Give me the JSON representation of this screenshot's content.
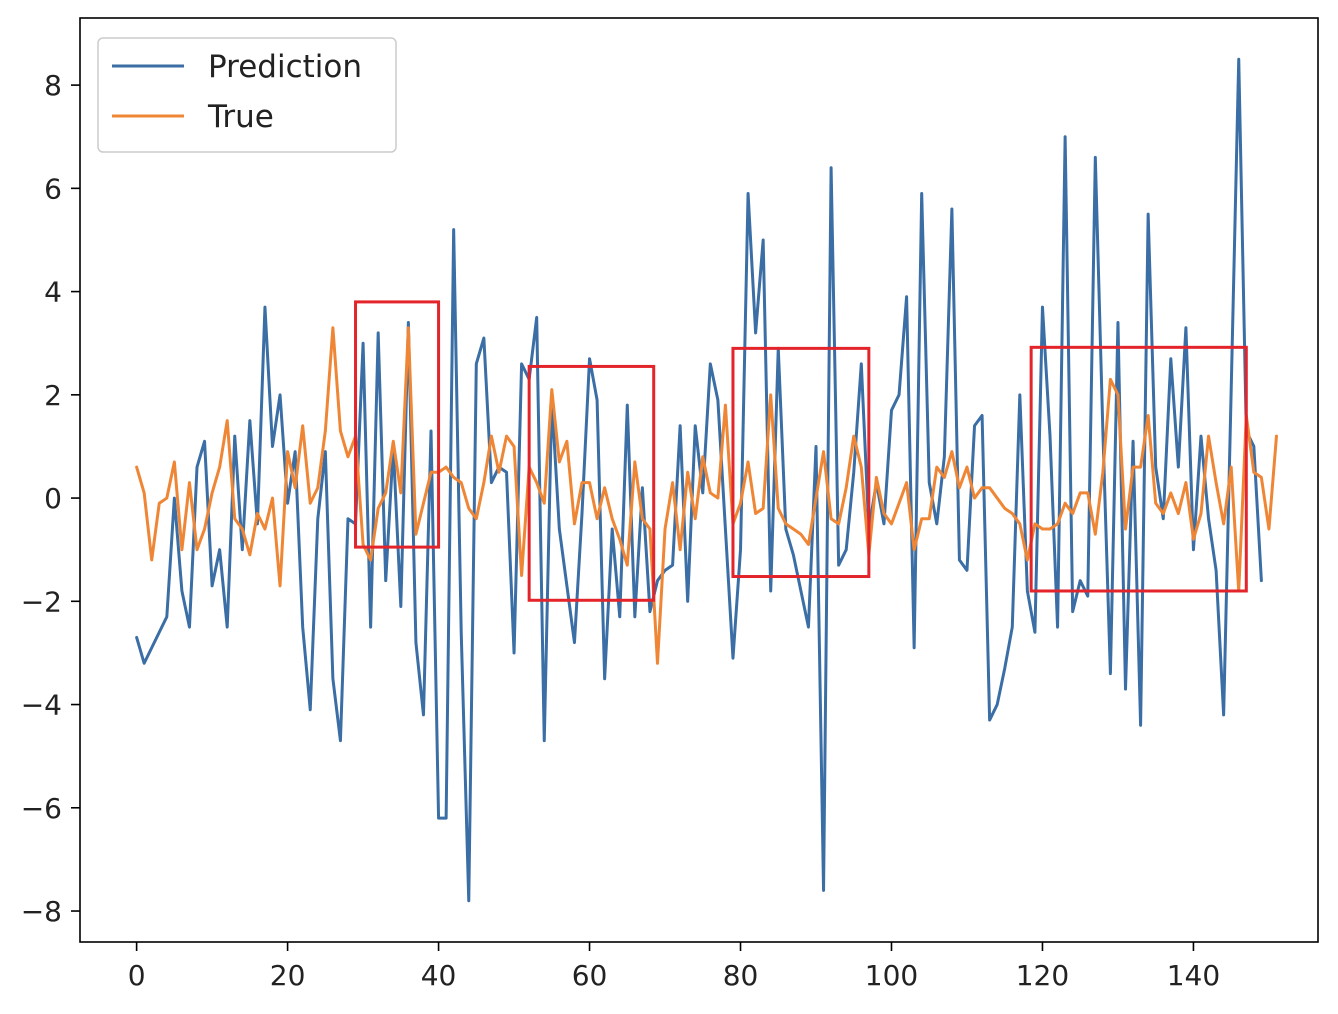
{
  "chart_data": {
    "type": "line",
    "title": "",
    "xlabel": "",
    "ylabel": "",
    "xlim": [
      -7.5,
      156.5
    ],
    "ylim": [
      -8.6,
      9.3
    ],
    "grid": false,
    "legend": {
      "position": "top-left"
    },
    "xticks": [
      0,
      20,
      40,
      60,
      80,
      100,
      120,
      140
    ],
    "yticks": [
      -8,
      -6,
      -4,
      -2,
      0,
      2,
      4,
      6,
      8
    ],
    "series": [
      {
        "name": "Prediction",
        "color": "#3a6ea5",
        "values": [
          -2.7,
          -3.2,
          -2.9,
          -2.6,
          -2.3,
          0.0,
          -1.8,
          -2.5,
          0.6,
          1.1,
          -1.7,
          -1.0,
          -2.5,
          1.2,
          -1.0,
          1.5,
          -0.5,
          3.7,
          1.0,
          2.0,
          -0.1,
          0.9,
          -2.5,
          -4.1,
          -0.4,
          0.9,
          -3.5,
          -4.7,
          -0.4,
          -0.5,
          3.0,
          -2.5,
          3.2,
          -1.6,
          1.0,
          -2.1,
          3.4,
          -2.8,
          -4.2,
          1.3,
          -6.2,
          -6.2,
          5.2,
          -2.6,
          -7.8,
          2.6,
          3.1,
          0.3,
          0.6,
          0.5,
          -3.0,
          2.6,
          2.3,
          3.5,
          -4.7,
          1.9,
          -0.6,
          -1.7,
          -2.8,
          -0.3,
          2.7,
          1.9,
          -3.5,
          -0.6,
          -2.3,
          1.8,
          -2.3,
          0.2,
          -2.2,
          -1.6,
          -1.4,
          -1.3,
          1.4,
          -2.0,
          1.4,
          0.1,
          2.6,
          1.9,
          -0.6,
          -3.1,
          -1.0,
          5.9,
          3.2,
          5.0,
          -1.8,
          2.9,
          -0.6,
          -1.1,
          -1.8,
          -2.5,
          1.0,
          -7.6,
          6.4,
          -1.3,
          -1.0,
          0.5,
          2.6,
          -0.6,
          0.3,
          -0.5,
          1.7,
          2.0,
          3.9,
          -2.9,
          5.9,
          0.3,
          -0.5,
          0.8,
          5.6,
          -1.2,
          -1.4,
          1.4,
          1.6,
          -4.3,
          -4.0,
          -3.3,
          -2.5,
          2.0,
          -1.8,
          -2.6,
          3.7,
          1.2,
          -2.5,
          7.0,
          -2.2,
          -1.6,
          -1.9,
          6.6,
          1.3,
          -3.4,
          3.4,
          -3.7,
          1.1,
          -4.4,
          5.5,
          0.6,
          -0.4,
          2.7,
          0.6,
          3.3,
          -1.0,
          1.2,
          -0.4,
          -1.4,
          -4.2,
          2.1,
          8.5,
          1.3,
          1.0,
          -1.6
        ]
      },
      {
        "name": "True",
        "color": "#ef8636",
        "values": [
          0.6,
          0.1,
          -1.2,
          -0.1,
          0.0,
          0.7,
          -1.0,
          0.3,
          -1.0,
          -0.6,
          0.1,
          0.6,
          1.5,
          -0.4,
          -0.6,
          -1.1,
          -0.3,
          -0.6,
          0.0,
          -1.7,
          0.9,
          0.2,
          1.4,
          -0.1,
          0.2,
          1.3,
          3.3,
          1.3,
          0.8,
          1.2,
          -0.9,
          -1.2,
          -0.2,
          0.1,
          1.1,
          0.1,
          3.3,
          -0.7,
          -0.1,
          0.5,
          0.5,
          0.6,
          0.4,
          0.3,
          -0.2,
          -0.4,
          0.3,
          1.2,
          0.5,
          1.2,
          1.0,
          -1.5,
          0.6,
          0.3,
          -0.1,
          2.1,
          0.7,
          1.1,
          -0.5,
          0.3,
          0.3,
          -0.4,
          0.2,
          -0.4,
          -0.8,
          -1.3,
          0.7,
          -0.4,
          -0.6,
          -3.2,
          -0.6,
          0.3,
          -1.0,
          0.5,
          -0.4,
          0.8,
          0.1,
          0.0,
          1.8,
          -0.5,
          -0.1,
          0.7,
          -0.3,
          -0.2,
          2.0,
          -0.2,
          -0.5,
          -0.6,
          -0.7,
          -0.9,
          0.0,
          0.9,
          -0.4,
          -0.5,
          0.2,
          1.2,
          0.6,
          -1.1,
          0.4,
          -0.3,
          -0.5,
          -0.1,
          0.3,
          -1.0,
          -0.4,
          -0.4,
          0.6,
          0.4,
          0.9,
          0.2,
          0.6,
          0.0,
          0.2,
          0.2,
          0.0,
          -0.2,
          -0.3,
          -0.5,
          -1.2,
          -0.5,
          -0.6,
          -0.6,
          -0.5,
          -0.1,
          -0.3,
          0.1,
          0.1,
          -0.7,
          0.5,
          2.3,
          2.0,
          -0.6,
          0.6,
          0.6,
          1.6,
          -0.1,
          -0.3,
          0.1,
          -0.3,
          0.3,
          -0.8,
          -0.3,
          1.2,
          0.3,
          -0.5,
          0.6,
          -1.8,
          1.6,
          0.5,
          0.4,
          -0.6,
          1.2
        ]
      }
    ],
    "annotations": [
      {
        "type": "box",
        "color": "#e3242b",
        "x_range": [
          29,
          40
        ],
        "y_range": [
          -0.95,
          3.8
        ]
      },
      {
        "type": "box",
        "color": "#e3242b",
        "x_range": [
          52,
          68.5
        ],
        "y_range": [
          -1.98,
          2.55
        ]
      },
      {
        "type": "box",
        "color": "#e3242b",
        "x_range": [
          79,
          97
        ],
        "y_range": [
          -1.52,
          2.9
        ]
      },
      {
        "type": "box",
        "color": "#e3242b",
        "x_range": [
          118.5,
          147
        ],
        "y_range": [
          -1.8,
          2.92
        ]
      }
    ]
  }
}
